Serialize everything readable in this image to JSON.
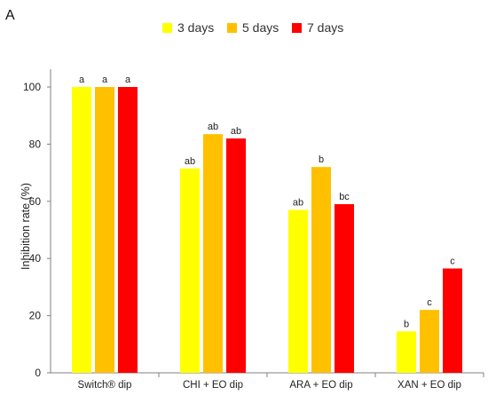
{
  "chart_data": {
    "type": "bar",
    "panel_label": "A",
    "categories": [
      "Switch® dip",
      "CHI + EO dip",
      "ARA + EO dip",
      "XAN + EO dip"
    ],
    "series": [
      {
        "name": "3 days",
        "color": "#ffff00",
        "values": [
          100,
          71.5,
          57,
          14.5
        ],
        "labels": [
          "a",
          "ab",
          "ab",
          "b"
        ]
      },
      {
        "name": "5 days",
        "color": "#ffc000",
        "values": [
          100,
          83.5,
          72,
          22
        ],
        "labels": [
          "a",
          "ab",
          "b",
          "c"
        ]
      },
      {
        "name": "7 days",
        "color": "#ff0000",
        "values": [
          100,
          82,
          59,
          36.5
        ],
        "labels": [
          "a",
          "ab",
          "bc",
          "c"
        ]
      }
    ],
    "ylabel": "Inhibition rate (%)",
    "xlabel": "",
    "ylim": [
      0,
      100
    ],
    "yticks": [
      0,
      20,
      40,
      60,
      80,
      100
    ],
    "grid": false,
    "legend_position": "top-center"
  }
}
